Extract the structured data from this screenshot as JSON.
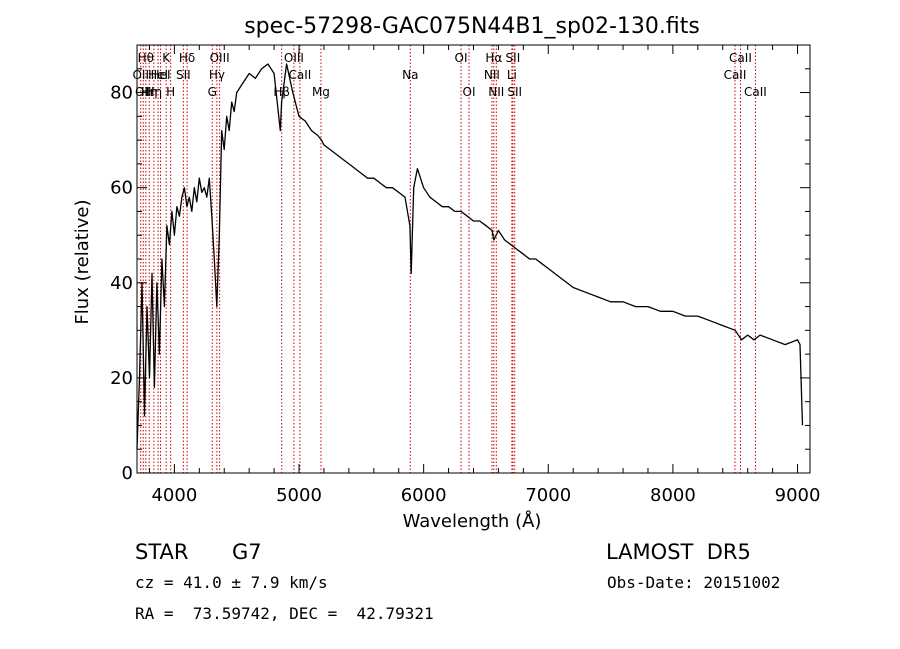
{
  "chart_data": {
    "type": "line",
    "title": "spec-57298-GAC075N44B1_sp02-130.fits",
    "xlabel": "Wavelength (Å)",
    "ylabel": "Flux (relative)",
    "xlim": [
      3700,
      9100
    ],
    "ylim": [
      0,
      90
    ],
    "x_ticks": [
      4000,
      5000,
      6000,
      7000,
      8000,
      9000
    ],
    "y_ticks": [
      0,
      20,
      40,
      60,
      80
    ],
    "grid": false,
    "line_color": "#000000",
    "marker_line_color": "#cc0000",
    "series": [
      {
        "x": [
          3700,
          3720,
          3740,
          3760,
          3780,
          3800,
          3820,
          3840,
          3860,
          3880,
          3900,
          3920,
          3940,
          3960,
          3980,
          4000,
          4020,
          4040,
          4060,
          4080,
          4100,
          4120,
          4140,
          4160,
          4180,
          4200,
          4220,
          4240,
          4260,
          4280,
          4300,
          4320,
          4340,
          4360,
          4380,
          4400,
          4420,
          4440,
          4460,
          4480,
          4500,
          4550,
          4600,
          4650,
          4700,
          4750,
          4800,
          4850,
          4860,
          4900,
          4950,
          5000,
          5050,
          5100,
          5150,
          5180,
          5200,
          5250,
          5300,
          5350,
          5400,
          5450,
          5500,
          5550,
          5600,
          5650,
          5700,
          5750,
          5800,
          5850,
          5890,
          5900,
          5920,
          5950,
          6000,
          6050,
          6100,
          6150,
          6200,
          6250,
          6300,
          6350,
          6400,
          6450,
          6500,
          6550,
          6563,
          6600,
          6650,
          6700,
          6750,
          6800,
          6850,
          6900,
          6950,
          7000,
          7100,
          7200,
          7300,
          7400,
          7500,
          7600,
          7700,
          7800,
          7900,
          8000,
          8100,
          8200,
          8300,
          8400,
          8500,
          8550,
          8600,
          8650,
          8700,
          8800,
          8900,
          9000,
          9020,
          9040
        ],
        "y": [
          5,
          20,
          40,
          12,
          35,
          20,
          42,
          18,
          40,
          25,
          45,
          35,
          52,
          48,
          55,
          50,
          56,
          54,
          58,
          60,
          56,
          58,
          55,
          60,
          57,
          62,
          59,
          60,
          58,
          62,
          54,
          45,
          35,
          50,
          72,
          68,
          75,
          72,
          78,
          76,
          80,
          82,
          84,
          83,
          85,
          86,
          84,
          72,
          78,
          86,
          80,
          75,
          74,
          72,
          71,
          70,
          69,
          68,
          67,
          66,
          65,
          64,
          63,
          62,
          62,
          61,
          60,
          60,
          59,
          58,
          52,
          42,
          60,
          64,
          60,
          58,
          57,
          56,
          56,
          55,
          55,
          54,
          53,
          53,
          52,
          51,
          49,
          51,
          49,
          48,
          47,
          46,
          45,
          45,
          44,
          43,
          41,
          39,
          38,
          37,
          36,
          36,
          35,
          35,
          34,
          34,
          33,
          33,
          32,
          31,
          30,
          28,
          29,
          28,
          29,
          28,
          27,
          28,
          27,
          10
        ],
        "name": ""
      }
    ],
    "line_markers": [
      {
        "wave": 3730,
        "label": "OII",
        "row": 2
      },
      {
        "wave": 3750,
        "label": "OII",
        "row": 3
      },
      {
        "wave": 3771,
        "label": "Hθ",
        "row": 1
      },
      {
        "wave": 3798,
        "label": "Hη",
        "row": 3
      },
      {
        "wave": 3835,
        "label": "Hη",
        "row": 3
      },
      {
        "wave": 3869,
        "label": "HeI",
        "row": 2
      },
      {
        "wave": 3889,
        "label": "HeI",
        "row": 2
      },
      {
        "wave": 3934,
        "label": "K",
        "row": 1
      },
      {
        "wave": 3970,
        "label": "H",
        "row": 3
      },
      {
        "wave": 4072,
        "label": "SII",
        "row": 2
      },
      {
        "wave": 4102,
        "label": "Hδ",
        "row": 1
      },
      {
        "wave": 4304,
        "label": "G",
        "row": 3
      },
      {
        "wave": 4341,
        "label": "Hγ",
        "row": 2
      },
      {
        "wave": 4363,
        "label": "OIII",
        "row": 1
      },
      {
        "wave": 4861,
        "label": "Hβ",
        "row": 3
      },
      {
        "wave": 4959,
        "label": "OIII",
        "row": 1
      },
      {
        "wave": 5007,
        "label": "CaII",
        "row": 2
      },
      {
        "wave": 5176,
        "label": "Mg",
        "row": 3
      },
      {
        "wave": 5893,
        "label": "Na",
        "row": 2
      },
      {
        "wave": 6300,
        "label": "OI",
        "row": 1
      },
      {
        "wave": 6364,
        "label": "OI",
        "row": 3
      },
      {
        "wave": 6548,
        "label": "NII",
        "row": 2
      },
      {
        "wave": 6563,
        "label": "Hα",
        "row": 1
      },
      {
        "wave": 6583,
        "label": "NII",
        "row": 3
      },
      {
        "wave": 6708,
        "label": "Li",
        "row": 2
      },
      {
        "wave": 6716,
        "label": "SII",
        "row": 1
      },
      {
        "wave": 6731,
        "label": "SII",
        "row": 3
      },
      {
        "wave": 8498,
        "label": "CaII",
        "row": 2
      },
      {
        "wave": 8542,
        "label": "CaII",
        "row": 1
      },
      {
        "wave": 8662,
        "label": "CaII",
        "row": 3
      }
    ]
  },
  "footer": {
    "object_class": "STAR",
    "subclass": "G7",
    "survey": "LAMOST  DR5",
    "redshift_line": "cz = 41.0 ± 7.9 km/s",
    "obs_date": "Obs-Date: 20151002",
    "coords": "RA =  73.59742, DEC =  42.79321"
  }
}
